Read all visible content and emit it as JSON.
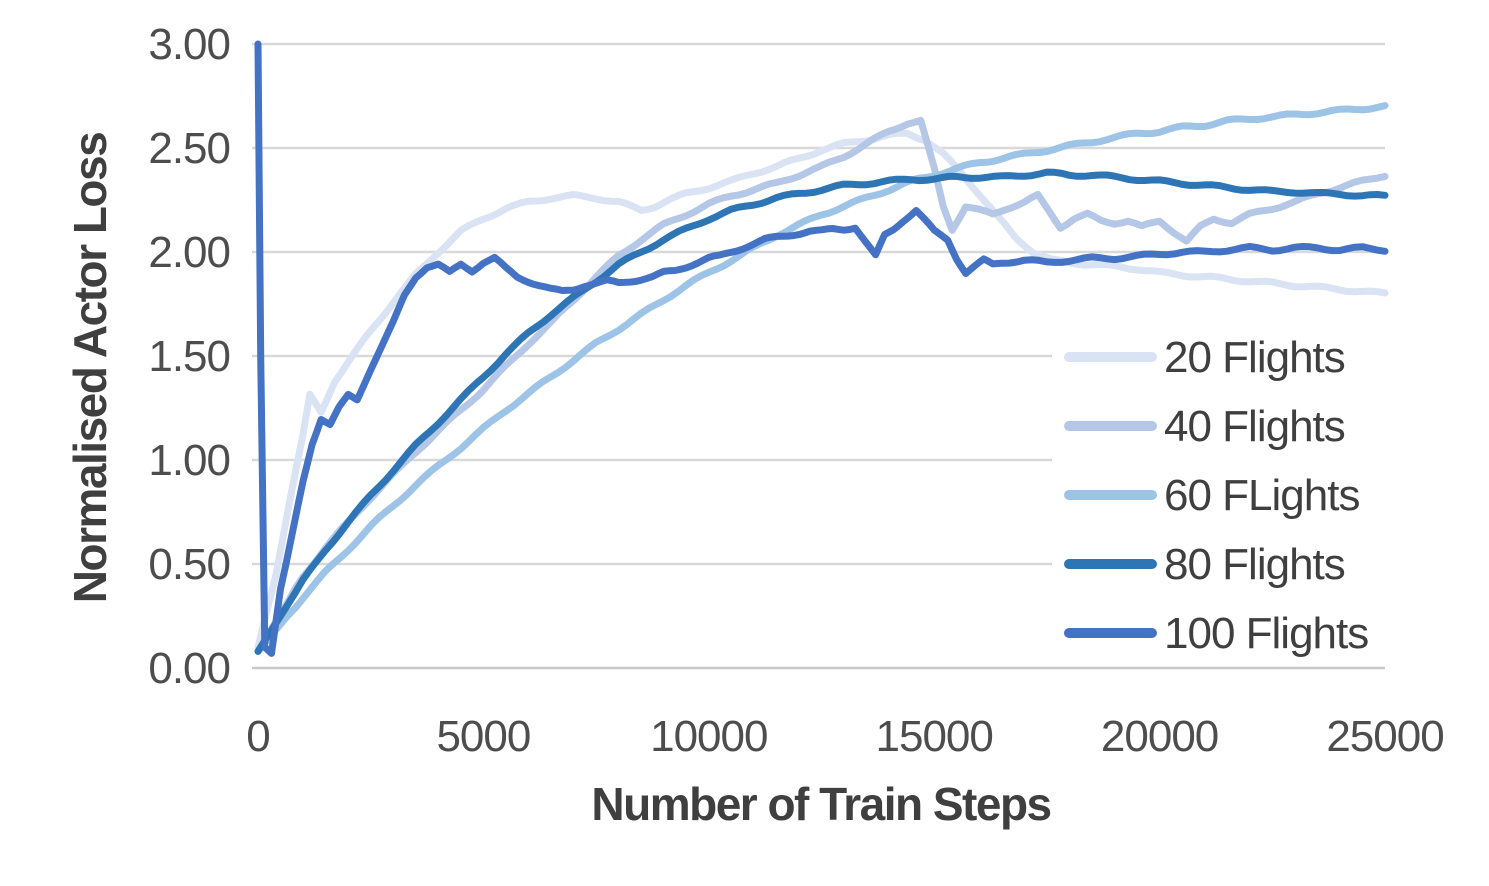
{
  "chart_data": {
    "type": "line",
    "title": "",
    "xlabel": "Number of Train Steps",
    "ylabel": "Normalised Actor Loss",
    "xlim": [
      0,
      25000
    ],
    "ylim": [
      0.0,
      3.0
    ],
    "xticks": [
      0,
      5000,
      10000,
      15000,
      20000,
      25000
    ],
    "xtick_labels": [
      "0",
      "5000",
      "10000",
      "15000",
      "20000",
      "25000"
    ],
    "yticks": [
      0.0,
      0.5,
      1.0,
      1.5,
      2.0,
      2.5,
      3.0
    ],
    "ytick_labels": [
      "0.00",
      "0.50",
      "1.00",
      "1.50",
      "2.00",
      "2.50",
      "3.00"
    ],
    "grid": "horizontal",
    "gridline_color": "#d9d9d9",
    "legend_position": "inside-right",
    "legend_background": "#ffffff",
    "series": [
      {
        "name": "20 Flights",
        "color": "#dae3f3",
        "points": [
          [
            0,
            0.1
          ],
          [
            400,
            0.45
          ],
          [
            700,
            0.8
          ],
          [
            1000,
            1.12
          ],
          [
            1150,
            1.31
          ],
          [
            1400,
            1.23
          ],
          [
            1700,
            1.38
          ],
          [
            2000,
            1.47
          ],
          [
            2500,
            1.62
          ],
          [
            3000,
            1.76
          ],
          [
            3500,
            1.89
          ],
          [
            4000,
            2.0
          ],
          [
            4500,
            2.1
          ],
          [
            5000,
            2.16
          ],
          [
            5500,
            2.21
          ],
          [
            6000,
            2.24
          ],
          [
            6500,
            2.26
          ],
          [
            7000,
            2.27
          ],
          [
            7500,
            2.26
          ],
          [
            8000,
            2.24
          ],
          [
            8500,
            2.2
          ],
          [
            8800,
            2.22
          ],
          [
            9000,
            2.24
          ],
          [
            9500,
            2.28
          ],
          [
            10000,
            2.31
          ],
          [
            10500,
            2.34
          ],
          [
            11000,
            2.38
          ],
          [
            11500,
            2.41
          ],
          [
            12000,
            2.45
          ],
          [
            12500,
            2.49
          ],
          [
            13000,
            2.52
          ],
          [
            13500,
            2.54
          ],
          [
            14000,
            2.56
          ],
          [
            14400,
            2.57
          ],
          [
            14800,
            2.54
          ],
          [
            15200,
            2.47
          ],
          [
            15600,
            2.38
          ],
          [
            16000,
            2.28
          ],
          [
            16400,
            2.17
          ],
          [
            16800,
            2.07
          ],
          [
            17200,
            2.0
          ],
          [
            17600,
            1.96
          ],
          [
            18000,
            1.95
          ],
          [
            18500,
            1.94
          ],
          [
            19000,
            1.93
          ],
          [
            19500,
            1.92
          ],
          [
            20000,
            1.9
          ],
          [
            20500,
            1.89
          ],
          [
            21000,
            1.88
          ],
          [
            21500,
            1.87
          ],
          [
            22000,
            1.86
          ],
          [
            22500,
            1.85
          ],
          [
            23000,
            1.84
          ],
          [
            23500,
            1.83
          ],
          [
            24000,
            1.82
          ],
          [
            24500,
            1.81
          ],
          [
            25000,
            1.8
          ]
        ]
      },
      {
        "name": "40 Flights",
        "color": "#b4c7e7",
        "points": [
          [
            0,
            0.08
          ],
          [
            500,
            0.26
          ],
          [
            1000,
            0.44
          ],
          [
            1500,
            0.58
          ],
          [
            2000,
            0.7
          ],
          [
            2500,
            0.82
          ],
          [
            3000,
            0.93
          ],
          [
            3500,
            1.04
          ],
          [
            4000,
            1.14
          ],
          [
            4500,
            1.24
          ],
          [
            5000,
            1.34
          ],
          [
            5500,
            1.45
          ],
          [
            6000,
            1.56
          ],
          [
            6500,
            1.66
          ],
          [
            7000,
            1.77
          ],
          [
            7500,
            1.88
          ],
          [
            8000,
            1.98
          ],
          [
            8500,
            2.06
          ],
          [
            9000,
            2.13
          ],
          [
            9500,
            2.18
          ],
          [
            10000,
            2.23
          ],
          [
            10500,
            2.27
          ],
          [
            11000,
            2.3
          ],
          [
            11500,
            2.33
          ],
          [
            12000,
            2.37
          ],
          [
            12500,
            2.41
          ],
          [
            13000,
            2.46
          ],
          [
            13500,
            2.52
          ],
          [
            14000,
            2.58
          ],
          [
            14400,
            2.62
          ],
          [
            14700,
            2.63
          ],
          [
            15000,
            2.4
          ],
          [
            15200,
            2.22
          ],
          [
            15400,
            2.11
          ],
          [
            15700,
            2.22
          ],
          [
            16000,
            2.2
          ],
          [
            16300,
            2.18
          ],
          [
            16600,
            2.21
          ],
          [
            17000,
            2.24
          ],
          [
            17300,
            2.27
          ],
          [
            17600,
            2.18
          ],
          [
            17800,
            2.12
          ],
          [
            18100,
            2.16
          ],
          [
            18400,
            2.18
          ],
          [
            18700,
            2.15
          ],
          [
            19000,
            2.14
          ],
          [
            19300,
            2.15
          ],
          [
            19600,
            2.12
          ],
          [
            20000,
            2.15
          ],
          [
            20300,
            2.1
          ],
          [
            20600,
            2.05
          ],
          [
            20900,
            2.12
          ],
          [
            21200,
            2.16
          ],
          [
            21600,
            2.14
          ],
          [
            22000,
            2.18
          ],
          [
            22500,
            2.21
          ],
          [
            23000,
            2.24
          ],
          [
            23500,
            2.28
          ],
          [
            24000,
            2.31
          ],
          [
            24500,
            2.34
          ],
          [
            25000,
            2.37
          ]
        ]
      },
      {
        "name": "60 FLights",
        "color": "#9dc3e6",
        "points": [
          [
            0,
            0.08
          ],
          [
            500,
            0.21
          ],
          [
            1000,
            0.34
          ],
          [
            1500,
            0.46
          ],
          [
            2000,
            0.57
          ],
          [
            2500,
            0.68
          ],
          [
            3000,
            0.78
          ],
          [
            3500,
            0.88
          ],
          [
            4000,
            0.97
          ],
          [
            4500,
            1.06
          ],
          [
            5000,
            1.15
          ],
          [
            5500,
            1.24
          ],
          [
            6000,
            1.32
          ],
          [
            6500,
            1.4
          ],
          [
            7000,
            1.48
          ],
          [
            7500,
            1.56
          ],
          [
            8000,
            1.63
          ],
          [
            8500,
            1.7
          ],
          [
            9000,
            1.77
          ],
          [
            9500,
            1.84
          ],
          [
            10000,
            1.9
          ],
          [
            10500,
            1.96
          ],
          [
            11000,
            2.02
          ],
          [
            11500,
            2.08
          ],
          [
            12000,
            2.13
          ],
          [
            12500,
            2.18
          ],
          [
            13000,
            2.22
          ],
          [
            13500,
            2.26
          ],
          [
            14000,
            2.3
          ],
          [
            14500,
            2.34
          ],
          [
            15000,
            2.37
          ],
          [
            15500,
            2.4
          ],
          [
            16000,
            2.43
          ],
          [
            16500,
            2.45
          ],
          [
            17000,
            2.47
          ],
          [
            17500,
            2.49
          ],
          [
            18000,
            2.51
          ],
          [
            18500,
            2.53
          ],
          [
            19000,
            2.55
          ],
          [
            19500,
            2.57
          ],
          [
            20000,
            2.58
          ],
          [
            20500,
            2.6
          ],
          [
            21000,
            2.61
          ],
          [
            21500,
            2.63
          ],
          [
            22000,
            2.64
          ],
          [
            22500,
            2.65
          ],
          [
            23000,
            2.66
          ],
          [
            23500,
            2.67
          ],
          [
            24000,
            2.68
          ],
          [
            24500,
            2.69
          ],
          [
            25000,
            2.7
          ]
        ]
      },
      {
        "name": "80 Flights",
        "color": "#2e75b6",
        "points": [
          [
            0,
            0.08
          ],
          [
            500,
            0.25
          ],
          [
            1000,
            0.42
          ],
          [
            1500,
            0.57
          ],
          [
            2000,
            0.7
          ],
          [
            2500,
            0.83
          ],
          [
            3000,
            0.95
          ],
          [
            3500,
            1.07
          ],
          [
            4000,
            1.18
          ],
          [
            4500,
            1.29
          ],
          [
            5000,
            1.4
          ],
          [
            5500,
            1.51
          ],
          [
            6000,
            1.61
          ],
          [
            6500,
            1.7
          ],
          [
            7000,
            1.78
          ],
          [
            7500,
            1.86
          ],
          [
            8000,
            1.94
          ],
          [
            8500,
            2.0
          ],
          [
            9000,
            2.06
          ],
          [
            9500,
            2.11
          ],
          [
            10000,
            2.16
          ],
          [
            10500,
            2.2
          ],
          [
            11000,
            2.23
          ],
          [
            11500,
            2.26
          ],
          [
            12000,
            2.28
          ],
          [
            12500,
            2.3
          ],
          [
            13000,
            2.32
          ],
          [
            13500,
            2.33
          ],
          [
            14000,
            2.34
          ],
          [
            14500,
            2.35
          ],
          [
            15000,
            2.35
          ],
          [
            15500,
            2.36
          ],
          [
            16000,
            2.36
          ],
          [
            16500,
            2.36
          ],
          [
            17000,
            2.37
          ],
          [
            17500,
            2.38
          ],
          [
            18000,
            2.37
          ],
          [
            18500,
            2.37
          ],
          [
            19000,
            2.36
          ],
          [
            19500,
            2.35
          ],
          [
            20000,
            2.34
          ],
          [
            20500,
            2.33
          ],
          [
            21000,
            2.32
          ],
          [
            21500,
            2.31
          ],
          [
            22000,
            2.3
          ],
          [
            22500,
            2.29
          ],
          [
            23000,
            2.29
          ],
          [
            23500,
            2.28
          ],
          [
            24000,
            2.28
          ],
          [
            24500,
            2.27
          ],
          [
            25000,
            2.27
          ]
        ]
      },
      {
        "name": "100 Flights",
        "color": "#4472c4",
        "points": [
          [
            0,
            3.0
          ],
          [
            60,
            1.5
          ],
          [
            150,
            0.1
          ],
          [
            300,
            0.07
          ],
          [
            500,
            0.38
          ],
          [
            750,
            0.63
          ],
          [
            1000,
            0.9
          ],
          [
            1200,
            1.08
          ],
          [
            1400,
            1.2
          ],
          [
            1600,
            1.17
          ],
          [
            1800,
            1.25
          ],
          [
            2000,
            1.31
          ],
          [
            2200,
            1.29
          ],
          [
            2500,
            1.44
          ],
          [
            2750,
            1.55
          ],
          [
            3000,
            1.66
          ],
          [
            3250,
            1.79
          ],
          [
            3500,
            1.88
          ],
          [
            3750,
            1.93
          ],
          [
            4000,
            1.94
          ],
          [
            4250,
            1.9
          ],
          [
            4500,
            1.94
          ],
          [
            4750,
            1.91
          ],
          [
            5000,
            1.95
          ],
          [
            5250,
            1.97
          ],
          [
            5500,
            1.92
          ],
          [
            5750,
            1.88
          ],
          [
            6000,
            1.86
          ],
          [
            6250,
            1.84
          ],
          [
            6500,
            1.82
          ],
          [
            6750,
            1.81
          ],
          [
            7000,
            1.82
          ],
          [
            7250,
            1.84
          ],
          [
            7500,
            1.85
          ],
          [
            7750,
            1.86
          ],
          [
            8000,
            1.85
          ],
          [
            8250,
            1.86
          ],
          [
            8500,
            1.87
          ],
          [
            8750,
            1.88
          ],
          [
            9000,
            1.9
          ],
          [
            9250,
            1.91
          ],
          [
            9500,
            1.93
          ],
          [
            9750,
            1.95
          ],
          [
            10000,
            1.97
          ],
          [
            10250,
            1.98
          ],
          [
            10500,
            2.0
          ],
          [
            10750,
            2.02
          ],
          [
            11000,
            2.04
          ],
          [
            11250,
            2.06
          ],
          [
            11500,
            2.07
          ],
          [
            11750,
            2.08
          ],
          [
            12000,
            2.09
          ],
          [
            12250,
            2.1
          ],
          [
            12500,
            2.1
          ],
          [
            12750,
            2.11
          ],
          [
            13000,
            2.11
          ],
          [
            13250,
            2.12
          ],
          [
            13500,
            2.04
          ],
          [
            13700,
            1.98
          ],
          [
            13900,
            2.08
          ],
          [
            14100,
            2.11
          ],
          [
            14300,
            2.15
          ],
          [
            14600,
            2.2
          ],
          [
            14800,
            2.15
          ],
          [
            15000,
            2.1
          ],
          [
            15300,
            2.06
          ],
          [
            15500,
            1.97
          ],
          [
            15700,
            1.9
          ],
          [
            15900,
            1.93
          ],
          [
            16100,
            1.96
          ],
          [
            16300,
            1.94
          ],
          [
            16500,
            1.95
          ],
          [
            17000,
            1.96
          ],
          [
            17500,
            1.95
          ],
          [
            18000,
            1.96
          ],
          [
            18500,
            1.97
          ],
          [
            19000,
            1.97
          ],
          [
            19500,
            1.98
          ],
          [
            20000,
            1.99
          ],
          [
            20500,
            2.0
          ],
          [
            21000,
            2.0
          ],
          [
            21500,
            2.01
          ],
          [
            22000,
            2.02
          ],
          [
            22500,
            2.01
          ],
          [
            23000,
            2.02
          ],
          [
            23500,
            2.02
          ],
          [
            24000,
            2.01
          ],
          [
            24500,
            2.02
          ],
          [
            25000,
            2.01
          ]
        ]
      }
    ]
  }
}
